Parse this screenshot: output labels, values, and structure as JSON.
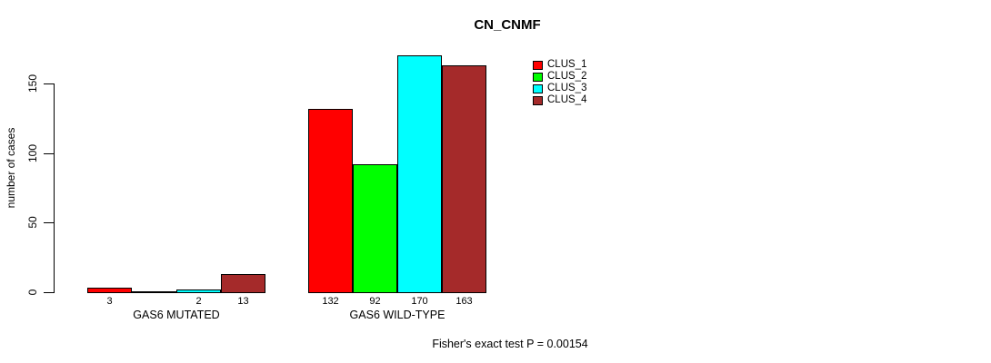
{
  "chart_data": {
    "type": "bar",
    "title": "CN_CNMF",
    "ylabel": "number of cases",
    "xlabel": "",
    "categories": [
      "GAS6 MUTATED",
      "GAS6 WILD-TYPE"
    ],
    "series": [
      {
        "name": "CLUS_1",
        "color": "#FF0000",
        "values": [
          3,
          132
        ]
      },
      {
        "name": "CLUS_2",
        "color": "#00FF00",
        "values": [
          0,
          92
        ]
      },
      {
        "name": "CLUS_3",
        "color": "#00FFFF",
        "values": [
          2,
          170
        ]
      },
      {
        "name": "CLUS_4",
        "color": "#A52A2A",
        "values": [
          13,
          163
        ]
      }
    ],
    "bar_value_labels": [
      [
        "3",
        null,
        "2",
        "13"
      ],
      [
        "132",
        "92",
        "170",
        "163"
      ]
    ],
    "yticks": [
      0,
      50,
      100,
      150
    ],
    "ylim": [
      0,
      150
    ],
    "grid": false,
    "legend_position": "top-right",
    "annotation": "Fisher's exact test P = 0.00154"
  }
}
